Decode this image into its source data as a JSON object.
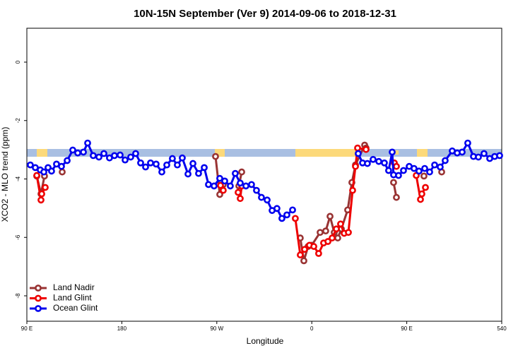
{
  "chart_data": {
    "type": "line",
    "title": "10N-15N September (Ver 9)   2014-09-06 to 2018-12-31",
    "xlabel": "Longitude",
    "ylabel": "XCO2 - MLO trend (ppm)",
    "xlim": [
      90,
      540
    ],
    "ylim": [
      -8.87,
      1.16
    ],
    "xticks": [
      {
        "value": 90,
        "label": "90 E"
      },
      180,
      {
        "value": 270,
        "label": "90 W"
      },
      {
        "value": 360,
        "label": "0"
      },
      {
        "value": 450,
        "label": "90 E"
      },
      540
    ],
    "yticks": [
      -8,
      -6,
      -4,
      -2,
      0
    ],
    "legend": "lower left",
    "series": [
      {
        "name": "Land Nadir",
        "color": "#993333",
        "x": [
          99.4,
          103.4,
          106.7,
          null,
          123.5,
          null,
          268.8,
          272.8,
          276.1,
          null,
          290.9,
          293.6,
          null,
          349.1,
          352.5,
          356.5,
          359.9,
          367.9,
          373.2,
          377.3,
          381.3,
          384.6,
          388.0,
          394.0,
          398.0,
          401.4,
          410.1,
          411.4,
          null,
          437.5,
          440.2,
          null,
          466.3,
          null,
          483.1
        ],
        "values": [
          -3.9,
          -4.51,
          -3.9,
          null,
          -3.76,
          null,
          -3.23,
          -4.53,
          -4.19,
          null,
          -4.24,
          -3.76,
          null,
          -6.02,
          -6.8,
          -6.31,
          -6.27,
          -5.83,
          -5.78,
          -5.28,
          -5.83,
          -6.02,
          -5.71,
          -5.06,
          -4.12,
          -3.52,
          -2.84,
          -2.94,
          null,
          -4.12,
          -4.63,
          null,
          -3.9,
          null,
          -3.76
        ]
      },
      {
        "name": "Land Glint",
        "color": "#ee0000",
        "x": [
          99.4,
          103.4,
          104.1,
          107.4,
          null,
          273.5,
          276.1,
          null,
          290.2,
          292.2,
          293.6,
          null,
          344.4,
          349.1,
          353.2,
          357.8,
          361.9,
          366.5,
          371.2,
          375.3,
          379.3,
          383.3,
          387.3,
          390.7,
          394.7,
          398.7,
          401.4,
          403.4,
          411.4,
          null,
          438.2,
          440.2,
          null,
          459.0,
          463.0,
          464.3,
          467.7
        ],
        "values": [
          -3.88,
          -4.72,
          -4.51,
          -4.29,
          null,
          -4.22,
          -4.39,
          null,
          -4.46,
          -4.67,
          -4.24,
          null,
          -5.35,
          -6.6,
          -6.41,
          -6.27,
          -6.31,
          -6.55,
          -6.19,
          -6.14,
          -6.02,
          -5.71,
          -5.54,
          -5.86,
          -5.83,
          -4.39,
          -3.57,
          -2.94,
          -2.99,
          null,
          -3.45,
          -3.57,
          null,
          -3.88,
          -4.7,
          -4.51,
          -4.29
        ]
      },
      {
        "name": "Ocean Glint",
        "color": "#0000ee",
        "x": [
          93.3,
          98.0,
          102.7,
          106.1,
          110.1,
          113.4,
          118.1,
          122.8,
          128.2,
          133.5,
          138.2,
          143.6,
          147.6,
          152.9,
          158.3,
          163.0,
          168.3,
          173.0,
          178.4,
          183.1,
          188.4,
          193.1,
          197.8,
          202.5,
          207.2,
          212.5,
          217.9,
          222.6,
          227.9,
          232.6,
          237.3,
          242.7,
          247.4,
          252.7,
          258.1,
          262.1,
          267.4,
          272.8,
          277.5,
          282.8,
          287.5,
          292.2,
          297.6,
          302.9,
          307.6,
          312.3,
          317.7,
          322.4,
          327.0,
          331.7,
          336.4,
          341.8,
          null,
          404.0,
          408.1,
          412.7,
          418.1,
          423.5,
          428.8,
          432.8,
          436.2,
          437.5,
          442.2,
          446.9,
          452.3,
          456.9,
          461.6,
          467.0,
          471.7,
          476.4,
          481.7,
          486.4,
          493.1,
          497.8,
          502.5,
          507.8,
          513.2,
          517.9,
          523.2,
          528.6,
          533.3,
          538.0
        ],
        "values": [
          -3.52,
          -3.61,
          -3.69,
          -3.76,
          -3.61,
          -3.73,
          -3.49,
          -3.57,
          -3.37,
          -3.01,
          -3.11,
          -3.08,
          -2.77,
          -3.2,
          -3.25,
          -3.13,
          -3.28,
          -3.2,
          -3.18,
          -3.35,
          -3.25,
          -3.13,
          -3.45,
          -3.59,
          -3.45,
          -3.49,
          -3.76,
          -3.52,
          -3.3,
          -3.52,
          -3.28,
          -3.83,
          -3.47,
          -3.81,
          -3.61,
          -4.19,
          -4.24,
          -3.98,
          -4.07,
          -4.24,
          -3.81,
          -4.14,
          -4.24,
          -4.19,
          -4.39,
          -4.63,
          -4.72,
          -5.08,
          -5.01,
          -5.35,
          -5.23,
          -5.06,
          null,
          -3.13,
          -3.45,
          -3.47,
          -3.33,
          -3.4,
          -3.45,
          -3.71,
          -3.08,
          -3.86,
          -3.88,
          -3.71,
          -3.57,
          -3.64,
          -3.73,
          -3.64,
          -3.76,
          -3.52,
          -3.59,
          -3.37,
          -3.04,
          -3.11,
          -3.08,
          -2.77,
          -3.23,
          -3.25,
          -3.13,
          -3.3,
          -3.23,
          -3.2
        ]
      }
    ]
  }
}
